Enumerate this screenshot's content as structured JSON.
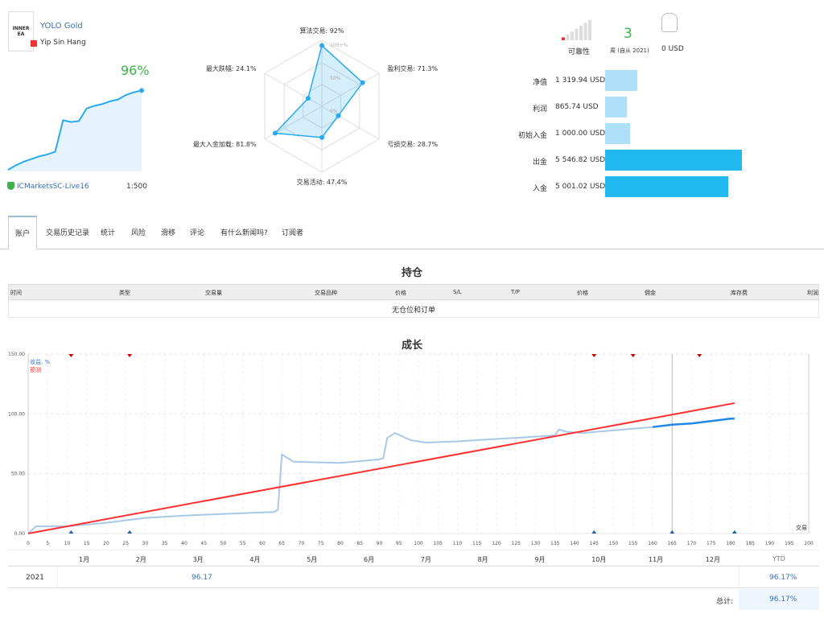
{
  "profile": {
    "logo_text": "INNER EA",
    "name": "YOLO Gold",
    "author": "Yip Sin Hang",
    "growth": "96%",
    "server": "ICMarketsSC-Live16",
    "leverage": "1:500",
    "mini_chart": [
      0,
      5,
      9,
      12,
      15,
      17,
      20,
      55,
      53,
      54,
      68,
      71,
      73,
      76,
      78,
      83,
      86,
      88
    ]
  },
  "radar": {
    "center_labels": [
      "100+%",
      "50%",
      "0%"
    ],
    "axes": [
      {
        "label": "算法交易: 92%",
        "value": 92
      },
      {
        "label": "盈利交易: 71.3%",
        "value": 71.3
      },
      {
        "label": "亏损交易: 28.7%",
        "value": 28.7
      },
      {
        "label": "交易活动: 47.4%",
        "value": 47.4
      },
      {
        "label": "最大入金加载: 81.8%",
        "value": 81.8
      },
      {
        "label": "最大跌幅: 24.1%",
        "value": 24.1
      }
    ]
  },
  "stats": {
    "reliability_label": "可靠性",
    "reliability_level": 1,
    "weeks": "3",
    "weeks_label": "周 (自从 2021)",
    "subscribers_value": "0 USD"
  },
  "balances": [
    {
      "label": "净值",
      "value": "1 319.94 USD",
      "amount": 1319.94
    },
    {
      "label": "利润",
      "value": "865.74 USD",
      "amount": 865.74
    },
    {
      "label": "初始入金",
      "value": "1 000.00 USD",
      "amount": 1000
    },
    {
      "label": "出金",
      "value": "5 546.82 USD",
      "amount": 5546.82
    },
    {
      "label": "入金",
      "value": "5 001.02 USD",
      "amount": 5001.02
    }
  ],
  "tabs": [
    "账户",
    "交易历史记录",
    "统计",
    "风险",
    "滑移",
    "评论",
    "有什么新闻吗?",
    "订阅者"
  ],
  "positions": {
    "title": "持仓",
    "columns": [
      "时间",
      "类型",
      "交易量",
      "交易品种",
      "价格",
      "S/L",
      "T/P",
      "价格",
      "佣金",
      "库存费",
      "利润"
    ],
    "empty": "无仓位和订单"
  },
  "growth": {
    "title": "成长",
    "legend": [
      "收益, %",
      "预测"
    ],
    "chart_data": {
      "type": "line",
      "xlabel": "交易",
      "ylim": [
        0,
        150
      ],
      "xlim": [
        0,
        200
      ],
      "yticks": [
        "0.00",
        "50.00",
        "100.00",
        "150.00"
      ],
      "xticks": [
        0,
        5,
        10,
        15,
        20,
        25,
        30,
        35,
        40,
        45,
        50,
        55,
        60,
        65,
        70,
        75,
        80,
        85,
        90,
        95,
        100,
        105,
        110,
        115,
        120,
        125,
        130,
        135,
        140,
        145,
        150,
        155,
        160,
        165,
        170,
        175,
        180,
        185,
        190,
        195,
        200
      ],
      "series": [
        {
          "name": "收益, %",
          "color": "#a8c8e8",
          "x": [
            0,
            2,
            10,
            20,
            30,
            40,
            55,
            63,
            64,
            65,
            68,
            80,
            90,
            91,
            92,
            94,
            98,
            102,
            110,
            120,
            130,
            135,
            136,
            138,
            142,
            160
          ],
          "y": [
            0,
            6,
            6,
            9,
            13,
            15,
            17,
            18,
            20,
            66,
            60,
            59,
            62,
            63,
            80,
            84,
            78,
            76,
            77,
            79,
            81,
            82,
            87,
            85,
            84,
            89
          ]
        },
        {
          "name": "收益, %",
          "color": "#1e88e5",
          "x": [
            160,
            165,
            170,
            175,
            180,
            181
          ],
          "y": [
            89,
            91,
            92,
            94,
            96,
            96
          ]
        },
        {
          "name": "预测",
          "color": "#ff3030",
          "x": [
            0,
            181
          ],
          "y": [
            0,
            109
          ]
        }
      ],
      "top_markers": [
        11,
        26,
        145,
        155,
        172
      ],
      "bottom_markers": [
        11,
        26,
        145,
        165,
        181
      ],
      "vline": 165
    },
    "months": [
      "1月",
      "2月",
      "3月",
      "4月",
      "5月",
      "6月",
      "7月",
      "8月",
      "9月",
      "10月",
      "11月",
      "12月"
    ],
    "ytd_label": "YTD",
    "year": "2021",
    "year_value": "96.17",
    "ytd_value": "96.17%",
    "total_label": "总计:",
    "total_value": "96.17%"
  }
}
